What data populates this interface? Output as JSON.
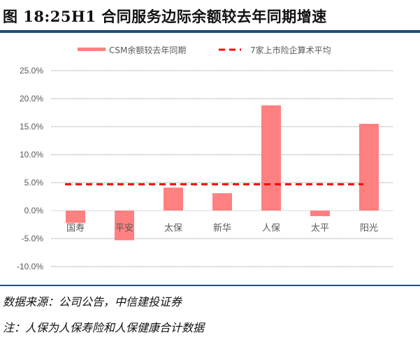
{
  "title": "图 18:25H1 合同服务边际余额较去年同期增速",
  "source": "数据来源：公司公告，中信建投证券",
  "note": "注：人保为人保寿险和人保健康合计数据",
  "chart_data": {
    "type": "bar",
    "categories": [
      "国寿",
      "平安",
      "太保",
      "新华",
      "人保",
      "太平",
      "阳光"
    ],
    "series": [
      {
        "name": "CSM余额较去年同期",
        "type": "bar",
        "color": "#ff8080",
        "values": [
          -2.2,
          -5.3,
          4.1,
          3.1,
          18.8,
          -1.0,
          15.5
        ]
      },
      {
        "name": "7家上市险企算术平均",
        "type": "line",
        "color": "#ff0000",
        "style": "dashed",
        "value": 4.7
      }
    ],
    "ylim": [
      -10,
      25
    ],
    "yticks": [
      -10,
      -5,
      0,
      5,
      10,
      15,
      20,
      25
    ],
    "ytick_labels": [
      "-10.0%",
      "-5.0%",
      "0.0%",
      "5.0%",
      "10.0%",
      "15.0%",
      "20.0%",
      "25.0%"
    ],
    "grid": true,
    "legend": "top"
  }
}
